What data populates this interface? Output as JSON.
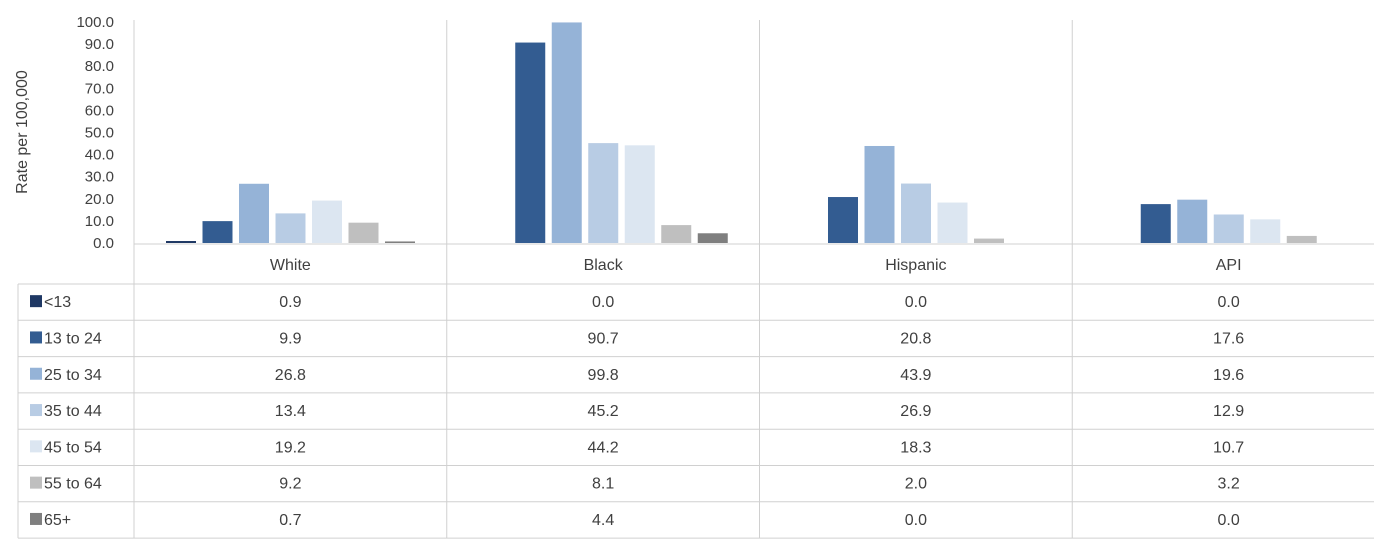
{
  "chart_data": {
    "type": "bar",
    "ylabel": "Rate per 100,000",
    "ylim": [
      0,
      100
    ],
    "yticks": [
      "0.0",
      "10.0",
      "20.0",
      "30.0",
      "40.0",
      "50.0",
      "60.0",
      "70.0",
      "80.0",
      "90.0",
      "100.0"
    ],
    "categories": [
      "White",
      "Black",
      "Hispanic",
      "API"
    ],
    "legend": "data-table",
    "series": [
      {
        "name": "<13",
        "color": "#1f3864",
        "values": [
          0.9,
          0.0,
          0.0,
          0.0
        ],
        "labels": [
          "0.9",
          "0.0",
          "0.0",
          "0.0"
        ]
      },
      {
        "name": "13 to 24",
        "color": "#335c91",
        "values": [
          9.9,
          90.7,
          20.8,
          17.6
        ],
        "labels": [
          "9.9",
          "90.7",
          "20.8",
          "17.6"
        ]
      },
      {
        "name": "25 to 34",
        "color": "#95b3d7",
        "values": [
          26.8,
          99.8,
          43.9,
          19.6
        ],
        "labels": [
          "26.8",
          "99.8",
          "43.9",
          "19.6"
        ]
      },
      {
        "name": "35 to 44",
        "color": "#b8cce4",
        "values": [
          13.4,
          45.2,
          26.9,
          12.9
        ],
        "labels": [
          "13.4",
          "45.2",
          "26.9",
          "12.9"
        ]
      },
      {
        "name": "45 to 54",
        "color": "#dce6f1",
        "values": [
          19.2,
          44.2,
          18.3,
          10.7
        ],
        "labels": [
          "19.2",
          "44.2",
          "18.3",
          "10.7"
        ]
      },
      {
        "name": "55 to 64",
        "color": "#bfbfbf",
        "values": [
          9.2,
          8.1,
          2.0,
          3.2
        ],
        "labels": [
          "9.2",
          "8.1",
          "2.0",
          "3.2"
        ]
      },
      {
        "name": "65+",
        "color": "#7f7f7f",
        "values": [
          0.7,
          4.4,
          0.0,
          0.0
        ],
        "labels": [
          "0.7",
          "4.4",
          "0.0",
          "0.0"
        ]
      }
    ]
  }
}
